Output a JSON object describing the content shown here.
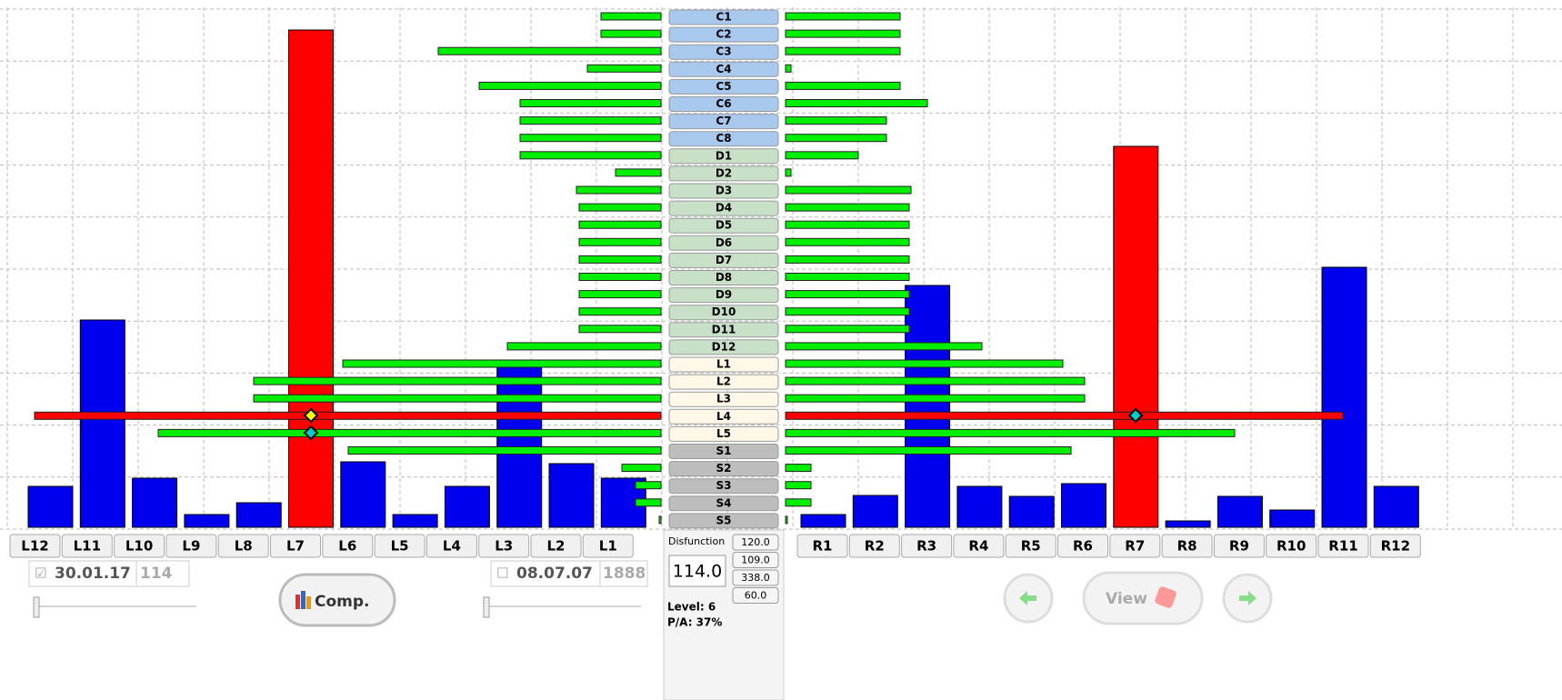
{
  "left_chart": {
    "categories": [
      "L12",
      "L11",
      "L10",
      "L9",
      "L8",
      "L7",
      "L6",
      "L5",
      "L4",
      "L3",
      "L2",
      "L1"
    ],
    "values": [
      45,
      228,
      54,
      14,
      27,
      547,
      72,
      14,
      45,
      180,
      70,
      54
    ],
    "colors": [
      "#0000ee",
      "#0000ee",
      "#0000ee",
      "#0000ee",
      "#0000ee",
      "#ff0000",
      "#0000ee",
      "#0000ee",
      "#0000ee",
      "#0000ee",
      "#0000ee",
      "#0000ee"
    ]
  },
  "right_chart": {
    "categories": [
      "R1",
      "R2",
      "R3",
      "R4",
      "R5",
      "R6",
      "R7",
      "R8",
      "R9",
      "R10",
      "R11",
      "R12"
    ],
    "values": [
      14,
      35,
      266,
      45,
      34,
      48,
      419,
      7,
      34,
      19,
      286,
      45
    ],
    "colors": [
      "#0000ee",
      "#0000ee",
      "#0000ee",
      "#0000ee",
      "#0000ee",
      "#0000ee",
      "#ff0000",
      "#0000ee",
      "#0000ee",
      "#0000ee",
      "#0000ee",
      "#0000ee"
    ]
  },
  "center": {
    "segments": [
      "C1",
      "C2",
      "C3",
      "C4",
      "C5",
      "C6",
      "C7",
      "C8",
      "D1",
      "D2",
      "D3",
      "D4",
      "D5",
      "D6",
      "D7",
      "D8",
      "D9",
      "D10",
      "D11",
      "D12",
      "L1",
      "L2",
      "L3",
      "L4",
      "L5",
      "S1",
      "S2",
      "S3",
      "S4",
      "S5"
    ],
    "left_values": [
      66,
      66,
      245,
      81,
      200,
      155,
      155,
      155,
      155,
      50,
      93,
      90,
      90,
      90,
      90,
      90,
      90,
      90,
      90,
      169,
      350,
      448,
      448,
      689,
      553,
      344,
      43,
      28,
      28,
      2
    ],
    "right_values": [
      126,
      126,
      126,
      6,
      126,
      156,
      111,
      111,
      80,
      6,
      138,
      136,
      136,
      136,
      136,
      136,
      136,
      136,
      136,
      216,
      305,
      329,
      329,
      613,
      494,
      314,
      28,
      28,
      28,
      2
    ],
    "colors": [
      "#00ee00",
      "#00ee00",
      "#00ee00",
      "#00ee00",
      "#00ee00",
      "#00ee00",
      "#00ee00",
      "#00ee00",
      "#00ee00",
      "#00ee00",
      "#00ee00",
      "#00ee00",
      "#00ee00",
      "#00ee00",
      "#00ee00",
      "#00ee00",
      "#00ee00",
      "#00ee00",
      "#00ee00",
      "#00ee00",
      "#00ee00",
      "#00ee00",
      "#00ee00",
      "#ff0000",
      "#00ee00",
      "#00ee00",
      "#00ee00",
      "#00ee00",
      "#00ee00",
      "#00ee00"
    ]
  },
  "panel": {
    "date1": "30.01.17",
    "count1": "114",
    "date2": "08.07.07",
    "count2": "1888",
    "compare_button": "Comp.",
    "view_button": "View",
    "disfunction_label": "Disfunction",
    "disfunction_value": "114.0",
    "readings": [
      "120.0",
      "109.0",
      "338.0",
      "60.0"
    ],
    "level": "Level: 6",
    "pa": "P/A: 37%"
  }
}
